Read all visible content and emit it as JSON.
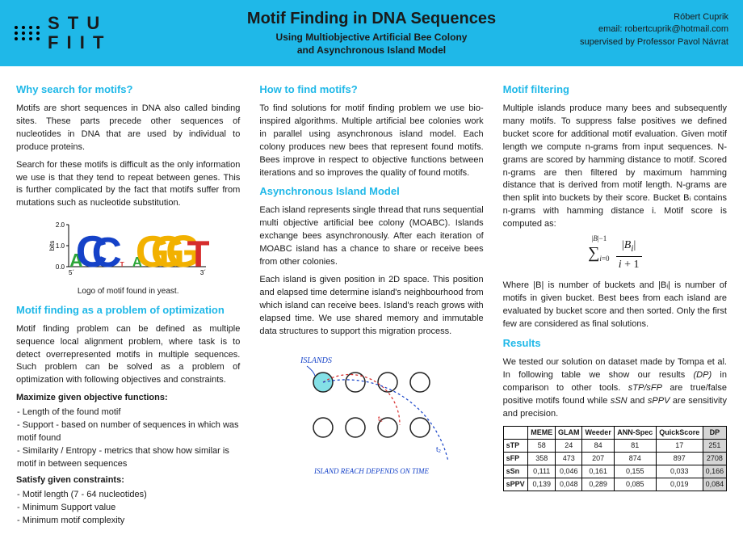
{
  "header": {
    "logo_text_1": "S T U",
    "logo_text_2": "F I I T",
    "title": "Motif Finding in DNA Sequences",
    "subtitle_1": "Using Multiobjective Artificial Bee Colony",
    "subtitle_2": "and Asynchronous Island Model",
    "author": "Róbert Cuprik",
    "email": "email: robertcuprik@hotmail.com",
    "supervisor": "supervised by Professor Pavol Návrat"
  },
  "col1": {
    "h1": "Why search for motifs?",
    "p1": "Motifs are short sequences in DNA also called binding sites. These parts precede other sequences of nucleotides in DNA that are used by individual to produce proteins.",
    "p2": "Search for these motifs is difficult as the only information we use is that they tend to repeat between genes. This is further complicated by the fact that motifs suffer from mutations such as nucleotide substitution.",
    "logo_caption": "Logo of motif found in yeast.",
    "h2": "Motif finding as a problem of optimization",
    "p3": "Motif finding problem can be defined as multiple sequence local alignment problem, where task is to detect overrepresented motifs in multiple sequences. Such problem can be solved as a problem of optimization with following objectives and constraints.",
    "obj_h": "Maximize given objective functions:",
    "obj1": "- Length of the found motif",
    "obj2": "- Support - based on number of sequences in which was motif found",
    "obj3": "- Similarity / Entropy - metrics that show how similar is motif in between sequences",
    "con_h": "Satisfy given constraints:",
    "con1": "- Motif length (7 - 64 nucleotides)",
    "con2": "- Minimum Support value",
    "con3": "- Minimum motif complexity",
    "chart": {
      "y_label": "bits",
      "y_ticks": [
        "0.0",
        "1.0",
        "2.0"
      ],
      "x_left": "5´",
      "x_right": "3´",
      "bases": [
        "A",
        "C",
        "C",
        "T",
        "A",
        "G",
        "G",
        "G",
        "T"
      ],
      "colors": {
        "A": "#2ea73a",
        "C": "#1542c8",
        "G": "#f2b100",
        "T": "#d62d2d"
      },
      "heights": [
        0.8,
        1.9,
        1.8,
        0.3,
        0.6,
        1.9,
        1.9,
        1.95,
        1.6
      ]
    }
  },
  "col2": {
    "h1": "How to find motifs?",
    "p1": "To find solutions for motif finding problem we use bio-inspired algorithms. Multiple artificial bee colonies work in parallel using asynchronous island model. Each colony produces new bees that represent found motifs. Bees improve in respect to objective functions between iterations and so improves the quality of found motifs.",
    "h2": "Asynchronous Island Model",
    "p2": "Each island represents single thread that runs sequential multi objective artificial bee colony (MOABC). Islands exchange bees asynchronously. After each iteration of MOABC island has a chance to share or receive bees from other colonies.",
    "p3": "Each island is given position in 2D space. This position and elapsed time determine island's neighbourhood from which island can receive bees. Island's reach grows with elapsed time. We use shared memory and immutable data structures to support this migration process.",
    "diagram": {
      "label_islands": "ISLANDS",
      "label_reach": "ISLAND REACH DEPENDS ON TIME",
      "t1": "t₁",
      "t2": "t₂",
      "fill_color": "#84e0e6",
      "stroke_color": "#222",
      "arc1_color": "#d62d2d",
      "arc2_color": "#1542c8"
    }
  },
  "col3": {
    "h1": "Motif filtering",
    "p1": "Multiple islands produce many bees and subsequently many motifs. To suppress false positives we defined bucket score for additional motif evaluation. Given motif length we compute n-grams from input sequences. N-grams are scored by hamming distance to motif. Scored n-grams are then filtered by maximum hamming distance that is derived from motif length. N-grams are then split into buckets by their score. Bucket Bᵢ contains n-grams with hamming distance i. Motif score is computed as:",
    "p2": "Where |B| is number of buckets and |Bᵢ| is number of motifs in given bucket. Best bees from each island are evaluated by bucket score and then sorted. Only the first few are considered as final solutions.",
    "h2": "Results",
    "p3": "We tested our solution on dataset made by Tompa et al. In following table we show our results (DP) in comparison to other tools. sTP/sFP are true/false positive motifs found while sSN and sPPV are sensitivity and precision.",
    "table": {
      "cols": [
        "",
        "MEME",
        "GLAM",
        "Weeder",
        "ANN-Spec",
        "QuickScore",
        "DP"
      ],
      "rows": [
        [
          "sTP",
          "58",
          "24",
          "84",
          "81",
          "17",
          "251"
        ],
        [
          "sFP",
          "358",
          "473",
          "207",
          "874",
          "897",
          "2708"
        ],
        [
          "sSn",
          "0,111",
          "0,046",
          "0,161",
          "0,155",
          "0,033",
          "0,166"
        ],
        [
          "sPPV",
          "0,139",
          "0,048",
          "0,289",
          "0,085",
          "0,019",
          "0,084"
        ]
      ]
    }
  }
}
